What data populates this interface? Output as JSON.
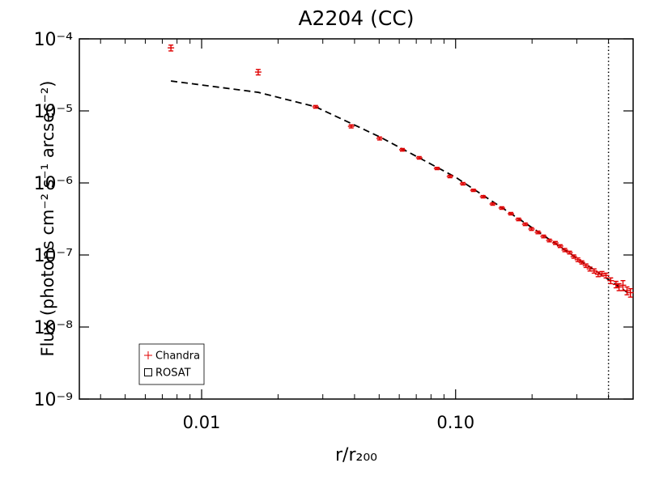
{
  "chart_data": {
    "type": "errorbar",
    "title": "A2204 (CC)",
    "xlabel": "r/r₂₀₀",
    "ylabel": "Flux (photons cm⁻² s⁻¹ arcsec⁻²)",
    "xscale": "log",
    "yscale": "log",
    "xlim": [
      0.0033,
      0.5
    ],
    "ylim": [
      1e-09,
      0.0001
    ],
    "xticks": [
      0.01,
      {
        "value": 0.1,
        "label": "0.10"
      }
    ],
    "xminorticks": [
      0.004,
      0.005,
      0.006,
      0.007,
      0.008,
      0.009,
      0.02,
      0.03,
      0.04,
      0.05,
      0.06,
      0.07,
      0.08,
      0.09,
      0.2,
      0.3,
      0.4
    ],
    "yticks": [
      {
        "value": 0.0001,
        "label": "10⁻⁴"
      },
      {
        "value": 1e-05,
        "label": "10⁻⁵"
      },
      {
        "value": 1e-06,
        "label": "10⁻⁶"
      },
      {
        "value": 1e-07,
        "label": "10⁻⁷"
      },
      {
        "value": 1e-08,
        "label": "10⁻⁸"
      },
      {
        "value": 1e-09,
        "label": "10⁻⁹"
      }
    ],
    "legend_loc": "lower left",
    "series": [
      {
        "name": "Chandra",
        "color": "#e00000",
        "marker": "plus",
        "x": [
          0.00757,
          0.0167,
          0.0281,
          0.0388,
          0.0502,
          0.0617,
          0.0719,
          0.0845,
          0.095,
          0.1069,
          0.1175,
          0.1283,
          0.14,
          0.152,
          0.165,
          0.177,
          0.188,
          0.199,
          0.211,
          0.222,
          0.234,
          0.247,
          0.258,
          0.269,
          0.281,
          0.292,
          0.303,
          0.314,
          0.326,
          0.338,
          0.351,
          0.364,
          0.377,
          0.391,
          0.408,
          0.428,
          0.44,
          0.456,
          0.473,
          0.488
        ],
        "values": [
          7.5e-05,
          3.46e-05,
          1.14e-05,
          6.1e-06,
          4.15e-06,
          2.89e-06,
          2.23e-06,
          1.59e-06,
          1.23e-06,
          9.75e-07,
          7.9e-07,
          6.44e-07,
          5.1e-07,
          4.49e-07,
          3.74e-07,
          3.12e-07,
          2.67e-07,
          2.29e-07,
          2.06e-07,
          1.81e-07,
          1.59e-07,
          1.47e-07,
          1.33e-07,
          1.17e-07,
          1.08e-07,
          9.5e-08,
          8.6e-08,
          7.9e-08,
          7.1e-08,
          6.4e-08,
          6e-08,
          5.4e-08,
          5.5e-08,
          5.2e-08,
          4.4e-08,
          3.9e-08,
          3.6e-08,
          3.8e-08,
          3.2e-08,
          3e-08
        ],
        "errors": [
          7e-06,
          3e-06,
          5e-07,
          3e-07,
          2e-07,
          1.2e-07,
          9e-08,
          6e-08,
          5e-08,
          4e-08,
          3e-08,
          2.5e-08,
          2e-08,
          1.8e-08,
          1.5e-08,
          1.3e-08,
          1.1e-08,
          1e-08,
          9e-09,
          8e-09,
          7e-09,
          7e-09,
          6e-09,
          6e-09,
          5e-09,
          5e-09,
          5e-09,
          4e-09,
          4e-09,
          4e-09,
          4e-09,
          4e-09,
          4e-09,
          4e-09,
          4e-09,
          4e-09,
          4e-09,
          6e-09,
          4e-09,
          4e-09
        ]
      },
      {
        "name": "ROSAT",
        "color": "#000000",
        "marker": "square",
        "x": [],
        "values": [],
        "errors": []
      }
    ],
    "model": {
      "color": "#000000",
      "dash": true,
      "x": [
        0.00757,
        0.0167,
        0.0281,
        0.0502,
        0.1,
        0.189,
        0.49
      ],
      "values": [
        2.6e-05,
        1.81e-05,
        1.14e-05,
        4.37e-06,
        1.2e-06,
        2.74e-07,
        2.8e-08
      ]
    },
    "vline": 0.4
  }
}
